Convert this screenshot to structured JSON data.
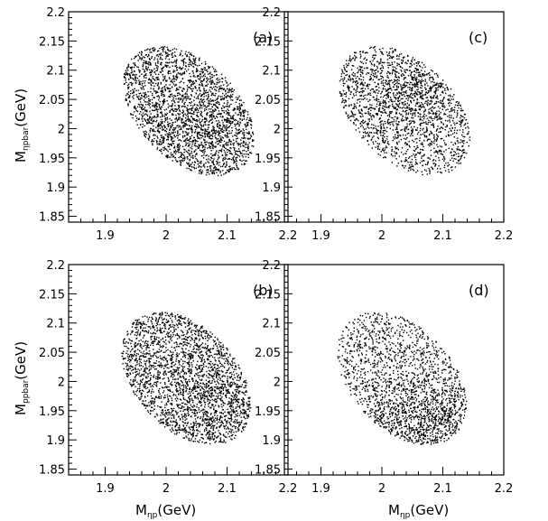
{
  "figure": {
    "ylabel_top": {
      "main": "M",
      "sub": "ηpbar",
      "unit": "(GeV)"
    },
    "ylabel_bottom": {
      "main": "M",
      "sub": "ppbar",
      "unit": "(GeV)"
    },
    "xlabel_left": {
      "main": "M",
      "sub": "ηp",
      "unit": "(GeV)"
    },
    "xlabel_right": {
      "main": "M",
      "sub": "ηp",
      "unit": "(GeV)"
    }
  },
  "chart_data": [
    {
      "type": "scatter",
      "panel": "(a)",
      "xlim": [
        1.84,
        2.2
      ],
      "ylim": [
        1.84,
        2.2
      ],
      "xticks": [
        "1.9",
        "2",
        "2.1",
        "2.2"
      ],
      "yticks": [
        "1.85",
        "1.9",
        "1.95",
        "2",
        "2.05",
        "2.1",
        "2.15",
        "2.2"
      ],
      "grid": false,
      "points": {
        "count": 2600,
        "center": [
          2.037,
          2.03
        ],
        "semi_axes": [
          0.13,
          0.083
        ],
        "tilt_deg": -47,
        "density_gradient": 0.25,
        "density_center": [
          2.07,
          2.0
        ],
        "seed": 11
      }
    },
    {
      "type": "scatter",
      "panel": "(c)",
      "xlim": [
        1.84,
        2.2
      ],
      "ylim": [
        1.84,
        2.2
      ],
      "xticks": [
        "1.9",
        "2",
        "2.1",
        "2.2"
      ],
      "yticks": [
        "1.85",
        "1.9",
        "1.95",
        "2",
        "2.05",
        "2.1",
        "2.15",
        "2.2"
      ],
      "grid": false,
      "points": {
        "count": 2000,
        "center": [
          2.037,
          2.03
        ],
        "semi_axes": [
          0.13,
          0.083
        ],
        "tilt_deg": -47,
        "density_gradient": 0.55,
        "density_center": [
          2.05,
          2.06
        ],
        "seed": 23
      }
    },
    {
      "type": "scatter",
      "panel": "(b)",
      "xlim": [
        1.84,
        2.2
      ],
      "ylim": [
        1.84,
        2.2
      ],
      "xticks": [
        "1.9",
        "2",
        "2.1",
        "2.2"
      ],
      "yticks": [
        "1.85",
        "1.9",
        "1.95",
        "2",
        "2.05",
        "2.1",
        "2.15",
        "2.2"
      ],
      "grid": false,
      "points": {
        "count": 2600,
        "center": [
          2.033,
          2.005
        ],
        "semi_axes": [
          0.13,
          0.085
        ],
        "tilt_deg": -50,
        "density_gradient": 0.25,
        "density_center": [
          2.07,
          1.97
        ],
        "seed": 37
      }
    },
    {
      "type": "scatter",
      "panel": "(d)",
      "xlim": [
        1.84,
        2.2
      ],
      "ylim": [
        1.84,
        2.2
      ],
      "xticks": [
        "1.9",
        "2",
        "2.1",
        "2.2"
      ],
      "yticks": [
        "1.85",
        "1.9",
        "1.95",
        "2",
        "2.05",
        "2.1",
        "2.15",
        "2.2"
      ],
      "grid": false,
      "points": {
        "count": 2000,
        "center": [
          2.033,
          2.005
        ],
        "semi_axes": [
          0.13,
          0.085
        ],
        "tilt_deg": -50,
        "density_gradient": 0.6,
        "density_center": [
          2.07,
          1.93
        ],
        "seed": 51
      }
    }
  ]
}
